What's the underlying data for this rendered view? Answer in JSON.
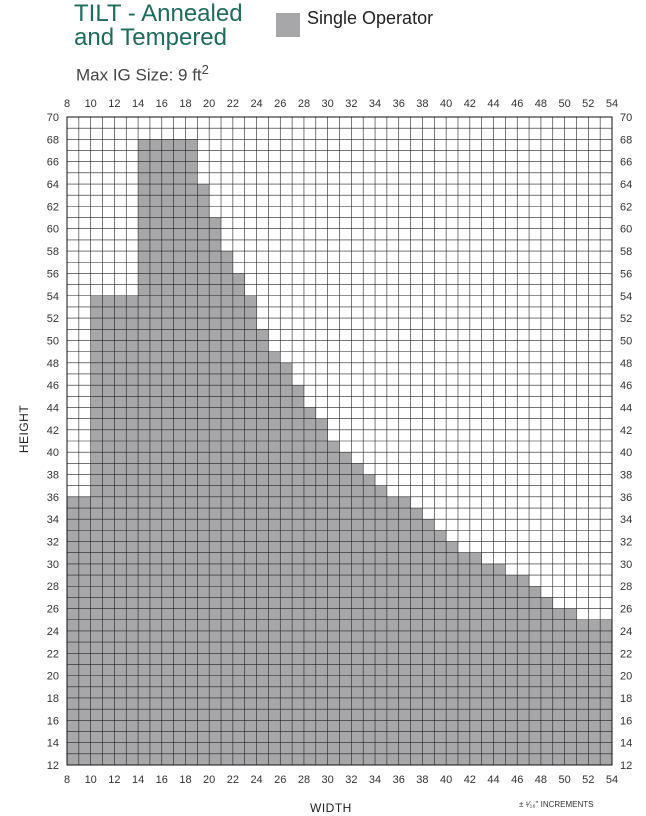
{
  "chart_data": {
    "type": "bar",
    "title_line1": "TILT - Annealed",
    "title_line2": "and Tempered",
    "subtitle": "Max IG Size: 9 ft",
    "subtitle_sup": "2",
    "xlabel": "WIDTH",
    "ylabel": "HEIGHT",
    "note": "± ¹⁄₁₆\" INCREMENTS",
    "xlim": [
      8,
      54
    ],
    "ylim": [
      12,
      70
    ],
    "x_ticks": [
      8,
      10,
      12,
      14,
      16,
      18,
      20,
      22,
      24,
      26,
      28,
      30,
      32,
      34,
      36,
      38,
      40,
      42,
      44,
      46,
      48,
      50,
      52,
      54
    ],
    "y_ticks": [
      12,
      14,
      16,
      18,
      20,
      22,
      24,
      26,
      28,
      30,
      32,
      34,
      36,
      38,
      40,
      42,
      44,
      46,
      48,
      50,
      52,
      54,
      56,
      58,
      60,
      62,
      64,
      66,
      68,
      70
    ],
    "grid": true,
    "series": [
      {
        "name": "Single Operator",
        "color": "#a7a7a9",
        "width_start": [
          8,
          10,
          14,
          19,
          20,
          21,
          22,
          23,
          24,
          25,
          26,
          27,
          28,
          29,
          30,
          31,
          32,
          33,
          34,
          35,
          37,
          38,
          39,
          40,
          41,
          43,
          45,
          47,
          48,
          49,
          51
        ],
        "width_end": [
          10,
          14,
          19,
          20,
          21,
          22,
          23,
          24,
          25,
          26,
          27,
          28,
          29,
          30,
          31,
          32,
          33,
          34,
          35,
          37,
          38,
          39,
          40,
          41,
          43,
          45,
          47,
          48,
          49,
          51,
          54
        ],
        "max_height": [
          36,
          54,
          68,
          64,
          61,
          58,
          56,
          54,
          51,
          49,
          48,
          46,
          44,
          43,
          41,
          40,
          39,
          38,
          37,
          36,
          35,
          34,
          33,
          32,
          31,
          30,
          29,
          28,
          27,
          26,
          25
        ]
      }
    ]
  }
}
